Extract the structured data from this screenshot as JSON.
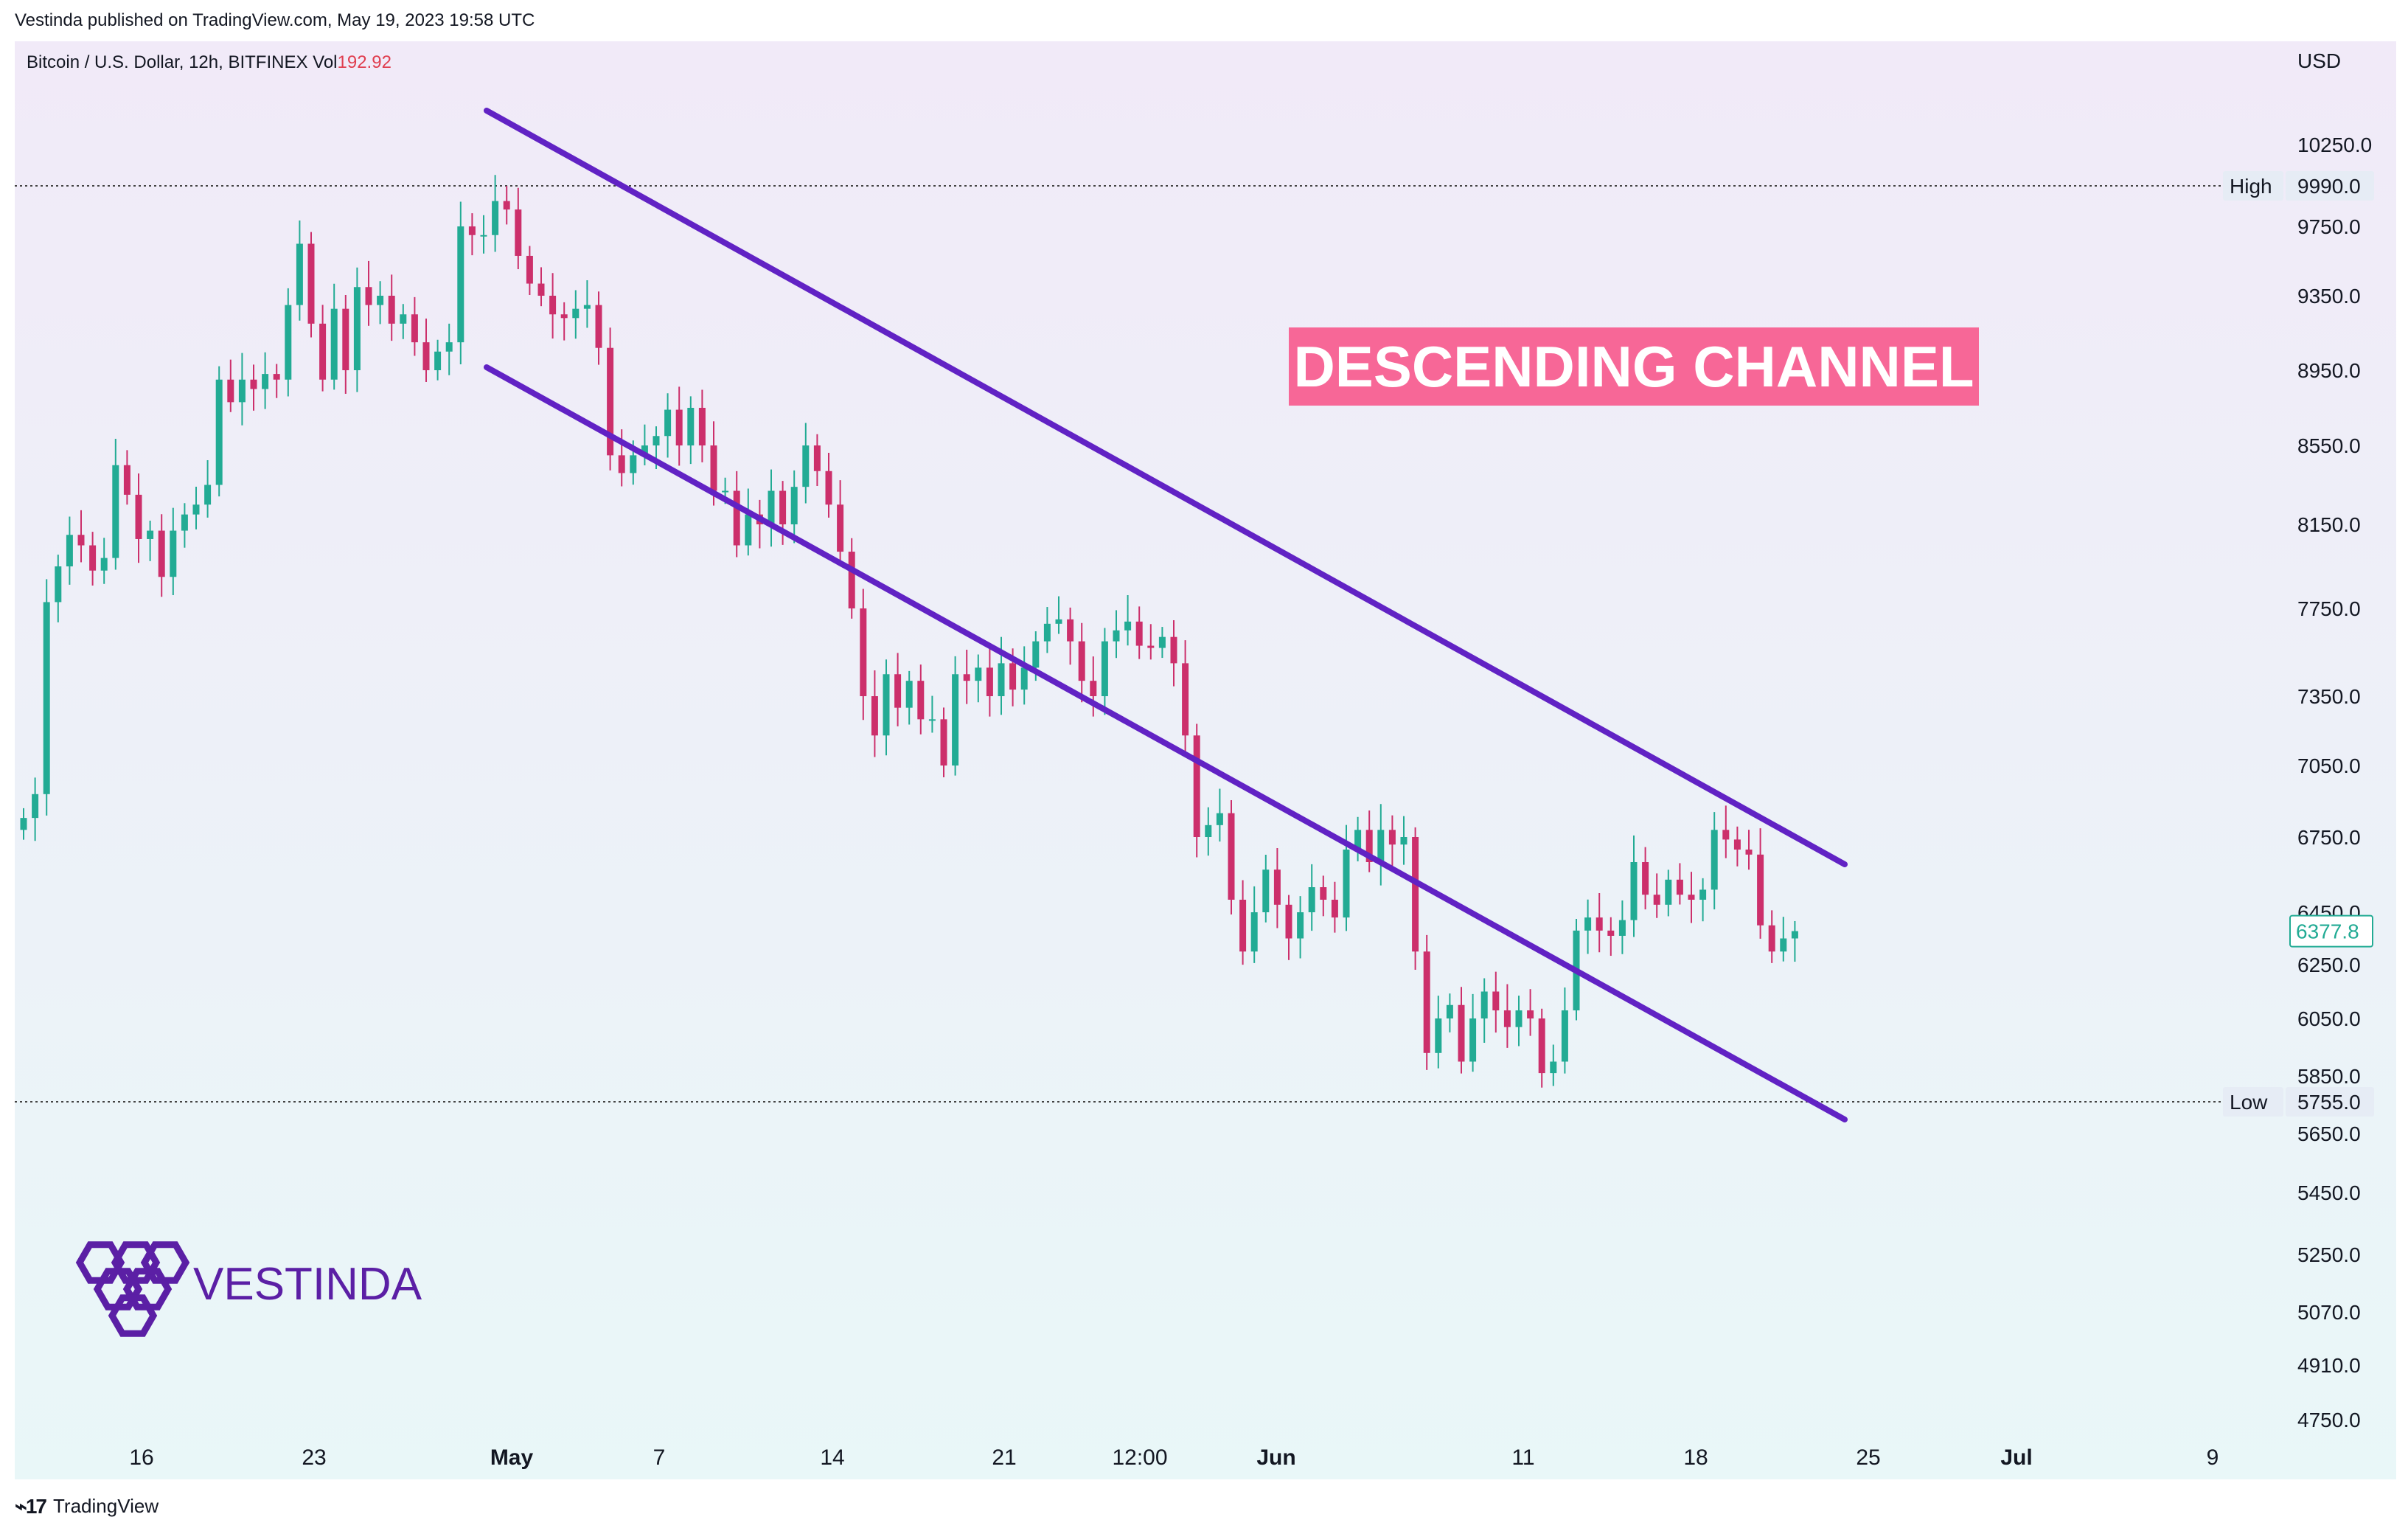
{
  "publisher_note": "Vestinda published on TradingView.com, May 19, 2023 19:58 UTC",
  "footer_brand": "TradingView",
  "colors": {
    "up": "#22ab94",
    "down": "#cc2f6b",
    "channel": "#6122c4",
    "label_bg": "#f76797",
    "last_price": "#22ab94",
    "logo": "#5b1fa5"
  },
  "chart_data": {
    "type": "candlestick",
    "symbol_line": "Bitcoin / U.S. Dollar, 12h, BITFINEX",
    "volume_label": "Vol",
    "volume_value": "192.92",
    "currency": "USD",
    "y_axis_ticks": [
      "10250.0",
      "9990.0",
      "9750.0",
      "9350.0",
      "8950.0",
      "8550.0",
      "8150.0",
      "7750.0",
      "7350.0",
      "7050.0",
      "6750.0",
      "6450.0",
      "6250.0",
      "6050.0",
      "5850.0",
      "5755.0",
      "5650.0",
      "5450.0",
      "5250.0",
      "5070.0",
      "4910.0",
      "4750.0"
    ],
    "x_axis_ticks": [
      {
        "label": "16",
        "bold": false
      },
      {
        "label": "23",
        "bold": false
      },
      {
        "label": "May",
        "bold": true
      },
      {
        "label": "7",
        "bold": false
      },
      {
        "label": "14",
        "bold": false
      },
      {
        "label": "21",
        "bold": false
      },
      {
        "label": "12:00",
        "bold": false
      },
      {
        "label": "Jun",
        "bold": true
      },
      {
        "label": "11",
        "bold": false
      },
      {
        "label": "18",
        "bold": false
      },
      {
        "label": "25",
        "bold": false
      },
      {
        "label": "Jul",
        "bold": true
      },
      {
        "label": "9",
        "bold": false
      }
    ],
    "high": {
      "label": "High",
      "value": "9990.0"
    },
    "low": {
      "label": "Low",
      "value": "5755.0"
    },
    "last_price": "6377.8",
    "annotation": "DESCENDING CHANNEL",
    "brand": "VESTINDA",
    "closes": [
      6830,
      6930,
      7780,
      7950,
      8100,
      8050,
      7930,
      7990,
      8450,
      8300,
      8080,
      8120,
      7900,
      8120,
      8200,
      8250,
      8350,
      8900,
      8780,
      8900,
      8850,
      8930,
      8900,
      9300,
      9650,
      9200,
      8900,
      9280,
      8950,
      9400,
      9300,
      9350,
      9200,
      9250,
      9100,
      8950,
      9050,
      9100,
      9750,
      9700,
      9700,
      9900,
      9850,
      9580,
      9420,
      9350,
      9250,
      9230,
      9280,
      9300,
      9070,
      8500,
      8410,
      8500,
      8550,
      8600,
      8740,
      8550,
      8750,
      8550,
      8320,
      8320,
      8050,
      8200,
      8150,
      8320,
      8150,
      8340,
      8550,
      8420,
      8250,
      8020,
      7750,
      7350,
      7180,
      7450,
      7300,
      7420,
      7250,
      7250,
      7050,
      7450,
      7420,
      7480,
      7350,
      7500,
      7380,
      7480,
      7600,
      7680,
      7700,
      7600,
      7420,
      7350,
      7600,
      7650,
      7690,
      7580,
      7570,
      7620,
      7500,
      7180,
      6750,
      6800,
      6850,
      6500,
      6300,
      6450,
      6620,
      6480,
      6350,
      6450,
      6550,
      6500,
      6430,
      6700,
      6780,
      6650,
      6780,
      6720,
      6750,
      6300,
      5930,
      6050,
      6100,
      5900,
      6050,
      6150,
      6080,
      6020,
      6080,
      6050,
      5860,
      5900,
      6080,
      6380,
      6430,
      6380,
      6360,
      6420,
      6650,
      6520,
      6480,
      6580,
      6520,
      6500,
      6540,
      6780,
      6740,
      6700,
      6680,
      6400,
      6300,
      6350,
      6378
    ]
  }
}
